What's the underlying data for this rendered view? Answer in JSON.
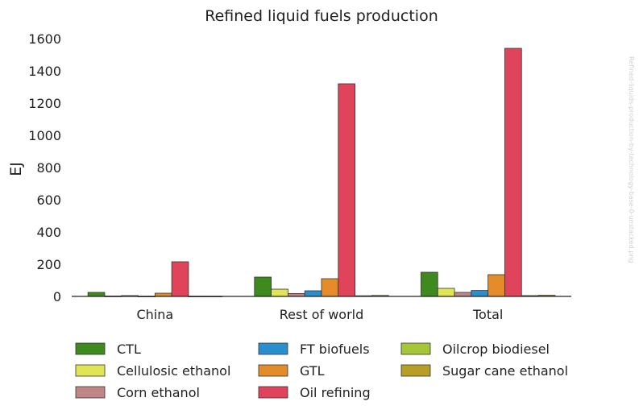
{
  "chart_data": {
    "type": "bar",
    "title": "Refined liquid fuels production",
    "xlabel": "",
    "ylabel": "EJ",
    "ylim": [
      0,
      1600
    ],
    "yticks": [
      0,
      200,
      400,
      600,
      800,
      1000,
      1200,
      1400,
      1600
    ],
    "grid": false,
    "legend_position": "bottom",
    "categories": [
      "China",
      "Rest of world",
      "Total"
    ],
    "series": [
      {
        "name": "CTL",
        "color": "#3f8a1e",
        "values": [
          25,
          120,
          150
        ]
      },
      {
        "name": "Cellulosic ethanol",
        "color": "#e1e454",
        "values": [
          2,
          45,
          50
        ]
      },
      {
        "name": "Corn ethanol",
        "color": "#c08585",
        "values": [
          5,
          18,
          25
        ]
      },
      {
        "name": "FT biofuels",
        "color": "#2a8fcf",
        "values": [
          1,
          35,
          37
        ]
      },
      {
        "name": "GTL",
        "color": "#e38c28",
        "values": [
          20,
          110,
          135
        ]
      },
      {
        "name": "Oil refining",
        "color": "#e0445a",
        "values": [
          215,
          1320,
          1540
        ]
      },
      {
        "name": "Oilcrop biodiesel",
        "color": "#a6c63a",
        "values": [
          1,
          4,
          5
        ]
      },
      {
        "name": "Sugar cane ethanol",
        "color": "#b79f25",
        "values": [
          1,
          6,
          7
        ]
      }
    ]
  },
  "watermark": "Refined-liquids-production-by-technology-base-0-unstacked.png"
}
